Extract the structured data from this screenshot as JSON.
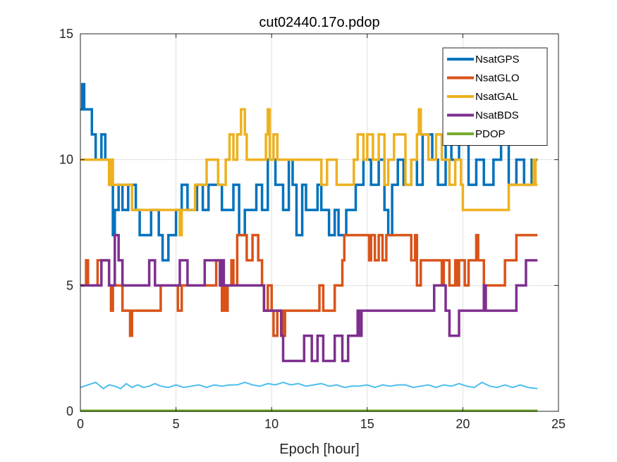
{
  "chart_data": {
    "type": "line",
    "title": "cut02440.17o.pdop",
    "xlabel": "Epoch [hour]",
    "ylabel": "",
    "xlim": [
      0,
      25
    ],
    "ylim": [
      0,
      15
    ],
    "xticks": [
      0,
      5,
      10,
      15,
      20,
      25
    ],
    "yticks": [
      0,
      5,
      10,
      15
    ],
    "grid": true,
    "legend_position": "top-right",
    "series": [
      {
        "name": "NsatGPS",
        "color": "#0072BD",
        "step": true,
        "points": [
          [
            0,
            12
          ],
          [
            0.1,
            13
          ],
          [
            0.2,
            12
          ],
          [
            0.6,
            11
          ],
          [
            0.8,
            10
          ],
          [
            0.9,
            10
          ],
          [
            1.1,
            11
          ],
          [
            1.3,
            10
          ],
          [
            1.5,
            9
          ],
          [
            1.7,
            7
          ],
          [
            1.8,
            8
          ],
          [
            2.0,
            9
          ],
          [
            2.2,
            8
          ],
          [
            2.5,
            9
          ],
          [
            2.9,
            8
          ],
          [
            3.1,
            7
          ],
          [
            3.7,
            8
          ],
          [
            4.1,
            7
          ],
          [
            4.3,
            6
          ],
          [
            4.6,
            7
          ],
          [
            5.0,
            8
          ],
          [
            5.3,
            9
          ],
          [
            5.6,
            8
          ],
          [
            6.1,
            9
          ],
          [
            6.4,
            8
          ],
          [
            6.7,
            9
          ],
          [
            7.4,
            8
          ],
          [
            8.0,
            9
          ],
          [
            8.3,
            7
          ],
          [
            8.6,
            8
          ],
          [
            9.2,
            9
          ],
          [
            9.5,
            8
          ],
          [
            9.8,
            10
          ],
          [
            10.2,
            9
          ],
          [
            10.6,
            8
          ],
          [
            10.9,
            10
          ],
          [
            11.1,
            9
          ],
          [
            11.3,
            7
          ],
          [
            11.6,
            9
          ],
          [
            11.8,
            8
          ],
          [
            12.4,
            9
          ],
          [
            12.6,
            8
          ],
          [
            13.0,
            7
          ],
          [
            13.3,
            8
          ],
          [
            13.5,
            7
          ],
          [
            13.9,
            8
          ],
          [
            14.4,
            9
          ],
          [
            14.8,
            10
          ],
          [
            15.2,
            9
          ],
          [
            15.6,
            10
          ],
          [
            15.9,
            8
          ],
          [
            16.1,
            7
          ],
          [
            16.3,
            9
          ],
          [
            16.6,
            10
          ],
          [
            16.9,
            9
          ],
          [
            17.3,
            10
          ],
          [
            17.6,
            9
          ],
          [
            17.9,
            11
          ],
          [
            18.4,
            10
          ],
          [
            18.7,
            9
          ],
          [
            19.1,
            11
          ],
          [
            19.4,
            10
          ],
          [
            19.8,
            11
          ],
          [
            20.3,
            9
          ],
          [
            20.7,
            10
          ],
          [
            21.1,
            9
          ],
          [
            21.6,
            10
          ],
          [
            22.0,
            11
          ],
          [
            22.4,
            9
          ],
          [
            22.8,
            10
          ],
          [
            23.2,
            9
          ],
          [
            23.6,
            10
          ],
          [
            23.9,
            10
          ]
        ]
      },
      {
        "name": "NsatGLO",
        "color": "#D95319",
        "step": true,
        "points": [
          [
            0,
            5
          ],
          [
            0.3,
            6
          ],
          [
            0.4,
            5
          ],
          [
            0.9,
            6
          ],
          [
            1.5,
            5
          ],
          [
            1.6,
            4
          ],
          [
            1.7,
            5
          ],
          [
            2.0,
            5
          ],
          [
            2.2,
            4
          ],
          [
            2.6,
            3
          ],
          [
            2.7,
            4
          ],
          [
            3.7,
            4
          ],
          [
            4.2,
            5
          ],
          [
            5.1,
            4
          ],
          [
            5.3,
            5
          ],
          [
            6.5,
            5
          ],
          [
            7.1,
            6
          ],
          [
            7.3,
            5
          ],
          [
            7.4,
            4
          ],
          [
            7.5,
            5
          ],
          [
            7.6,
            4
          ],
          [
            7.7,
            5
          ],
          [
            7.9,
            6
          ],
          [
            8.0,
            5
          ],
          [
            8.2,
            7
          ],
          [
            8.7,
            6
          ],
          [
            9.0,
            7
          ],
          [
            9.3,
            6
          ],
          [
            9.5,
            5
          ],
          [
            9.6,
            4
          ],
          [
            9.8,
            5
          ],
          [
            10.0,
            4
          ],
          [
            10.1,
            3
          ],
          [
            10.3,
            4
          ],
          [
            10.6,
            3
          ],
          [
            10.7,
            4
          ],
          [
            12.0,
            4
          ],
          [
            12.5,
            5
          ],
          [
            12.7,
            4
          ],
          [
            13.0,
            4
          ],
          [
            13.3,
            5
          ],
          [
            13.7,
            6
          ],
          [
            13.8,
            7
          ],
          [
            14.9,
            7
          ],
          [
            15.1,
            6
          ],
          [
            15.2,
            7
          ],
          [
            15.4,
            6
          ],
          [
            15.6,
            7
          ],
          [
            15.8,
            6
          ],
          [
            16.0,
            7
          ],
          [
            17.3,
            6
          ],
          [
            17.5,
            7
          ],
          [
            17.6,
            5
          ],
          [
            17.8,
            6
          ],
          [
            18.9,
            5
          ],
          [
            19.0,
            6
          ],
          [
            19.3,
            5
          ],
          [
            19.6,
            6
          ],
          [
            19.7,
            5
          ],
          [
            19.8,
            6
          ],
          [
            20.0,
            6
          ],
          [
            20.1,
            5
          ],
          [
            20.3,
            6
          ],
          [
            20.7,
            7
          ],
          [
            20.8,
            6
          ],
          [
            21.1,
            5
          ],
          [
            22.2,
            6
          ],
          [
            22.8,
            7
          ],
          [
            23.9,
            7
          ]
        ]
      },
      {
        "name": "NsatGAL",
        "color": "#EDB120",
        "step": true,
        "points": [
          [
            0,
            10
          ],
          [
            1.5,
            9
          ],
          [
            1.6,
            10
          ],
          [
            1.7,
            9
          ],
          [
            2.3,
            9
          ],
          [
            2.7,
            8
          ],
          [
            3.6,
            8
          ],
          [
            5.2,
            7
          ],
          [
            5.3,
            8
          ],
          [
            5.6,
            8
          ],
          [
            6.0,
            9
          ],
          [
            6.6,
            10
          ],
          [
            7.2,
            9
          ],
          [
            7.6,
            10
          ],
          [
            7.8,
            11
          ],
          [
            8.0,
            10
          ],
          [
            8.2,
            11
          ],
          [
            8.4,
            12
          ],
          [
            8.6,
            11
          ],
          [
            8.7,
            10
          ],
          [
            9.1,
            10
          ],
          [
            9.6,
            10
          ],
          [
            9.7,
            11
          ],
          [
            9.8,
            12
          ],
          [
            9.9,
            10
          ],
          [
            10.1,
            11
          ],
          [
            10.3,
            10
          ],
          [
            11.0,
            10
          ],
          [
            11.6,
            10
          ],
          [
            12.3,
            10
          ],
          [
            12.6,
            9
          ],
          [
            12.9,
            10
          ],
          [
            13.4,
            9
          ],
          [
            13.9,
            9
          ],
          [
            14.3,
            10
          ],
          [
            14.5,
            11
          ],
          [
            14.8,
            10
          ],
          [
            15.0,
            11
          ],
          [
            15.3,
            10
          ],
          [
            15.6,
            11
          ],
          [
            15.9,
            9
          ],
          [
            16.1,
            10
          ],
          [
            16.4,
            11
          ],
          [
            17.0,
            9
          ],
          [
            17.3,
            10
          ],
          [
            17.6,
            11
          ],
          [
            17.7,
            12
          ],
          [
            17.8,
            11
          ],
          [
            18.2,
            10
          ],
          [
            18.6,
            11
          ],
          [
            18.9,
            10
          ],
          [
            19.3,
            9
          ],
          [
            19.6,
            10
          ],
          [
            19.9,
            9
          ],
          [
            20.0,
            8
          ],
          [
            20.9,
            8
          ],
          [
            22.2,
            8
          ],
          [
            22.4,
            9
          ],
          [
            23.6,
            9
          ],
          [
            23.7,
            10
          ],
          [
            23.8,
            9
          ],
          [
            23.9,
            9
          ]
        ]
      },
      {
        "name": "NsatBDS",
        "color": "#7E2F8E",
        "step": true,
        "points": [
          [
            0,
            5
          ],
          [
            1.0,
            5
          ],
          [
            1.1,
            6
          ],
          [
            1.4,
            6
          ],
          [
            1.5,
            5
          ],
          [
            1.8,
            7
          ],
          [
            2.0,
            6
          ],
          [
            2.2,
            5
          ],
          [
            2.9,
            5
          ],
          [
            3.5,
            5
          ],
          [
            3.6,
            6
          ],
          [
            3.9,
            5
          ],
          [
            4.2,
            5
          ],
          [
            5.0,
            5
          ],
          [
            5.2,
            6
          ],
          [
            5.6,
            5
          ],
          [
            6.4,
            5
          ],
          [
            6.5,
            6
          ],
          [
            7.3,
            5
          ],
          [
            7.4,
            6
          ],
          [
            7.5,
            5
          ],
          [
            8.0,
            5
          ],
          [
            8.6,
            5
          ],
          [
            9.0,
            5
          ],
          [
            9.6,
            4
          ],
          [
            10.3,
            4
          ],
          [
            10.5,
            3
          ],
          [
            10.6,
            2
          ],
          [
            11.6,
            2
          ],
          [
            11.7,
            3
          ],
          [
            12.1,
            2
          ],
          [
            12.4,
            3
          ],
          [
            12.7,
            2
          ],
          [
            13.3,
            3
          ],
          [
            13.7,
            2
          ],
          [
            14.0,
            3
          ],
          [
            14.2,
            3
          ],
          [
            14.5,
            4
          ],
          [
            14.6,
            3
          ],
          [
            14.7,
            4
          ],
          [
            17.2,
            4
          ],
          [
            17.7,
            4
          ],
          [
            17.9,
            4
          ],
          [
            18.4,
            4
          ],
          [
            18.5,
            5
          ],
          [
            18.6,
            5
          ],
          [
            18.8,
            5
          ],
          [
            19.1,
            4
          ],
          [
            19.3,
            3
          ],
          [
            19.8,
            4
          ],
          [
            20.9,
            4
          ],
          [
            21.1,
            5
          ],
          [
            21.2,
            4
          ],
          [
            22.2,
            4
          ],
          [
            22.8,
            5
          ],
          [
            23.3,
            6
          ],
          [
            23.9,
            6
          ]
        ]
      },
      {
        "name": "PDOP",
        "color": "#77AC30",
        "step": false,
        "points": [
          [
            0,
            0.02
          ],
          [
            23.9,
            0.02
          ]
        ]
      },
      {
        "name": "",
        "color": "#4DBEEE",
        "step": false,
        "points": [
          [
            0,
            0.95
          ],
          [
            0.4,
            1.05
          ],
          [
            0.8,
            1.15
          ],
          [
            1.2,
            0.9
          ],
          [
            1.5,
            1.05
          ],
          [
            1.8,
            1.0
          ],
          [
            2.1,
            0.9
          ],
          [
            2.4,
            1.1
          ],
          [
            2.7,
            0.95
          ],
          [
            3.0,
            1.05
          ],
          [
            3.3,
            0.95
          ],
          [
            3.6,
            1.0
          ],
          [
            3.9,
            1.1
          ],
          [
            4.2,
            1.0
          ],
          [
            4.6,
            0.95
          ],
          [
            5.0,
            1.05
          ],
          [
            5.4,
            0.95
          ],
          [
            5.8,
            1.0
          ],
          [
            6.2,
            1.05
          ],
          [
            6.6,
            0.95
          ],
          [
            7.0,
            1.05
          ],
          [
            7.4,
            1.0
          ],
          [
            7.8,
            1.05
          ],
          [
            8.2,
            1.05
          ],
          [
            8.6,
            1.15
          ],
          [
            9.0,
            1.05
          ],
          [
            9.4,
            1.0
          ],
          [
            9.8,
            1.1
          ],
          [
            10.2,
            1.05
          ],
          [
            10.6,
            1.15
          ],
          [
            11.0,
            1.05
          ],
          [
            11.4,
            1.1
          ],
          [
            11.8,
            1.0
          ],
          [
            12.2,
            1.05
          ],
          [
            12.6,
            1.1
          ],
          [
            13.0,
            1.0
          ],
          [
            13.4,
            1.05
          ],
          [
            13.8,
            0.95
          ],
          [
            14.2,
            1.0
          ],
          [
            14.6,
            1.0
          ],
          [
            15.0,
            1.05
          ],
          [
            15.4,
            0.95
          ],
          [
            15.8,
            1.05
          ],
          [
            16.2,
            1.0
          ],
          [
            16.6,
            1.05
          ],
          [
            17.0,
            1.05
          ],
          [
            17.4,
            0.95
          ],
          [
            17.8,
            1.0
          ],
          [
            18.2,
            1.05
          ],
          [
            18.6,
            0.95
          ],
          [
            19.0,
            1.05
          ],
          [
            19.4,
            1.0
          ],
          [
            19.8,
            1.1
          ],
          [
            20.2,
            1.0
          ],
          [
            20.6,
            0.95
          ],
          [
            21.0,
            1.15
          ],
          [
            21.4,
            1.0
          ],
          [
            21.8,
            0.95
          ],
          [
            22.2,
            1.05
          ],
          [
            22.6,
            0.95
          ],
          [
            23.0,
            1.05
          ],
          [
            23.4,
            0.95
          ],
          [
            23.9,
            0.9
          ]
        ]
      }
    ]
  }
}
